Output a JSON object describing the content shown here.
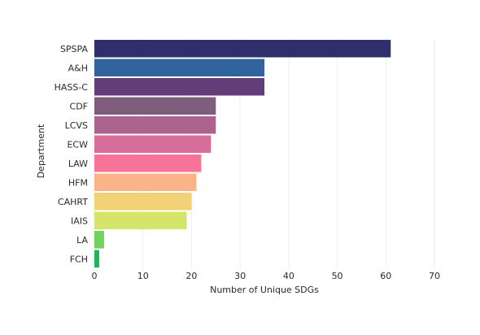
{
  "chart_data": {
    "type": "bar",
    "orientation": "horizontal",
    "title": "",
    "xlabel": "Number of Unique SDGs",
    "ylabel": "Department",
    "xlim": [
      0,
      70
    ],
    "xticks": [
      0,
      10,
      20,
      30,
      40,
      50,
      60,
      70
    ],
    "grid": true,
    "categories": [
      "SPSPA",
      "A&H",
      "HASS-C",
      "CDF",
      "LCVS",
      "ECW",
      "LAW",
      "HFM",
      "CAHRT",
      "IAIS",
      "LA",
      "FCH"
    ],
    "values": [
      61,
      35,
      35,
      25,
      25,
      24,
      22,
      21,
      20,
      19,
      2,
      1
    ],
    "colors": [
      "#2e2f6b",
      "#31649c",
      "#623d78",
      "#7e5e7c",
      "#ac648f",
      "#d66d9a",
      "#f77397",
      "#fcb387",
      "#f3d177",
      "#d4e56a",
      "#6fd35d",
      "#1db658"
    ]
  }
}
